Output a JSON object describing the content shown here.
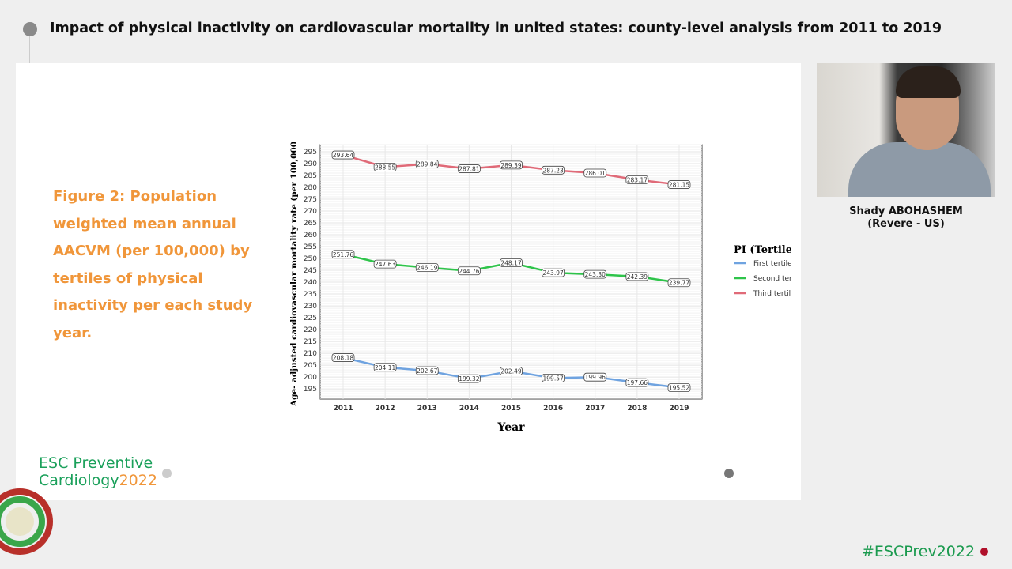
{
  "header": {
    "title": "Impact of physical inactivity on cardiovascular mortality in united states: county-level analysis from 2011 to 2019"
  },
  "slide": {
    "caption": "Figure 2: Population weighted mean annual AACVM (per 100,000) by tertiles of physical inactivity per each study year.",
    "logo_line1": "ESC Preventive",
    "logo_line2": "Cardiology",
    "logo_year": "2022"
  },
  "speaker": {
    "name": "Shady ABOHASHEM",
    "affiliation": "(Revere - US)"
  },
  "footer": {
    "hashtag": "#ESCPrev2022"
  },
  "colors": {
    "first": "#6fa3e0",
    "second": "#2ec44a",
    "third": "#e06a78",
    "caption": "#f0963a",
    "brand": "#1aa05a"
  },
  "chart_data": {
    "type": "line",
    "title": "",
    "xlabel": "Year",
    "ylabel": "Age- adjusted cardiovascular mortality rate (per 100,000)",
    "categories": [
      2011,
      2012,
      2013,
      2014,
      2015,
      2016,
      2017,
      2018,
      2019
    ],
    "ylim": [
      190.7,
      298
    ],
    "yticks": [
      195,
      200,
      205,
      210,
      215,
      220,
      225,
      230,
      235,
      240,
      245,
      250,
      255,
      260,
      265,
      270,
      275,
      280,
      285,
      290,
      295
    ],
    "grid": true,
    "legend_title": "PI (Tertiles)",
    "legend_position": "right",
    "series": [
      {
        "name": "First tertile",
        "color": "#6fa3e0",
        "values": [
          208.18,
          204.11,
          202.67,
          199.32,
          202.49,
          199.57,
          199.96,
          197.66,
          195.52
        ]
      },
      {
        "name": "Second tertile",
        "color": "#2ec44a",
        "values": [
          251.76,
          247.63,
          246.19,
          244.76,
          248.17,
          243.97,
          243.3,
          242.39,
          239.77
        ]
      },
      {
        "name": "Third tertile",
        "color": "#e06a78",
        "values": [
          293.64,
          288.55,
          289.84,
          287.81,
          289.39,
          287.23,
          286.01,
          283.17,
          281.15
        ]
      }
    ]
  }
}
